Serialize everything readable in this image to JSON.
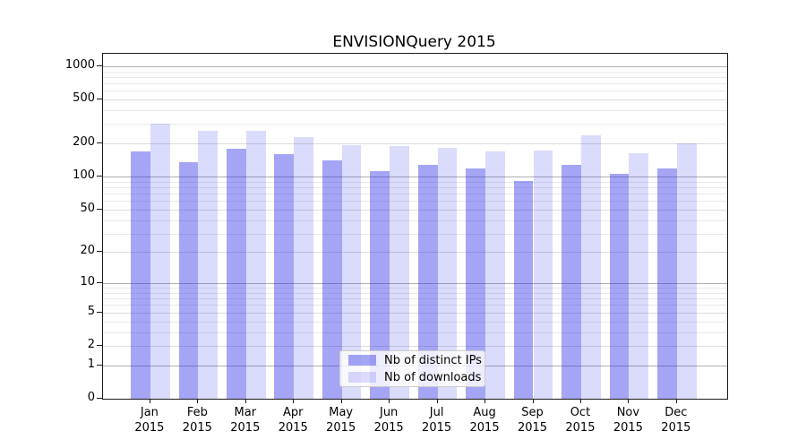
{
  "chart_data": {
    "type": "bar",
    "title": "ENVISIONQuery 2015",
    "categories": [
      "Jan",
      "Feb",
      "Mar",
      "Apr",
      "May",
      "Jun",
      "Jul",
      "Aug",
      "Sep",
      "Oct",
      "Nov",
      "Dec"
    ],
    "year_label": "2015",
    "series": [
      {
        "name": "Nb of distinct IPs",
        "color": "rgba(30,30,230,0.40)",
        "values": [
          168,
          136,
          179,
          159,
          141,
          113,
          128,
          118,
          91,
          129,
          106,
          119
        ]
      },
      {
        "name": "Nb of downloads",
        "color": "rgba(30,30,230,0.16)",
        "values": [
          300,
          263,
          259,
          230,
          195,
          188,
          183,
          171,
          173,
          239,
          163,
          200
        ]
      }
    ],
    "y_axis": {
      "scale": "log1p",
      "ticks": [
        0,
        1,
        2,
        5,
        10,
        20,
        50,
        100,
        200,
        500,
        1000
      ],
      "minor_ticks": [
        3,
        4,
        6,
        7,
        8,
        9,
        30,
        40,
        60,
        70,
        80,
        90,
        300,
        400,
        600,
        700,
        800,
        900
      ],
      "top_value": 1300
    },
    "legend": {
      "position": "lower-center",
      "items": [
        "Nb of distinct IPs",
        "Nb of downloads"
      ]
    },
    "grid": true
  },
  "colors": {
    "grid_decade": "#b0b0b0",
    "grid_mid": "#dcdcdc",
    "grid_minor": "#e9e9e9",
    "spine": "#1a1a1a"
  }
}
